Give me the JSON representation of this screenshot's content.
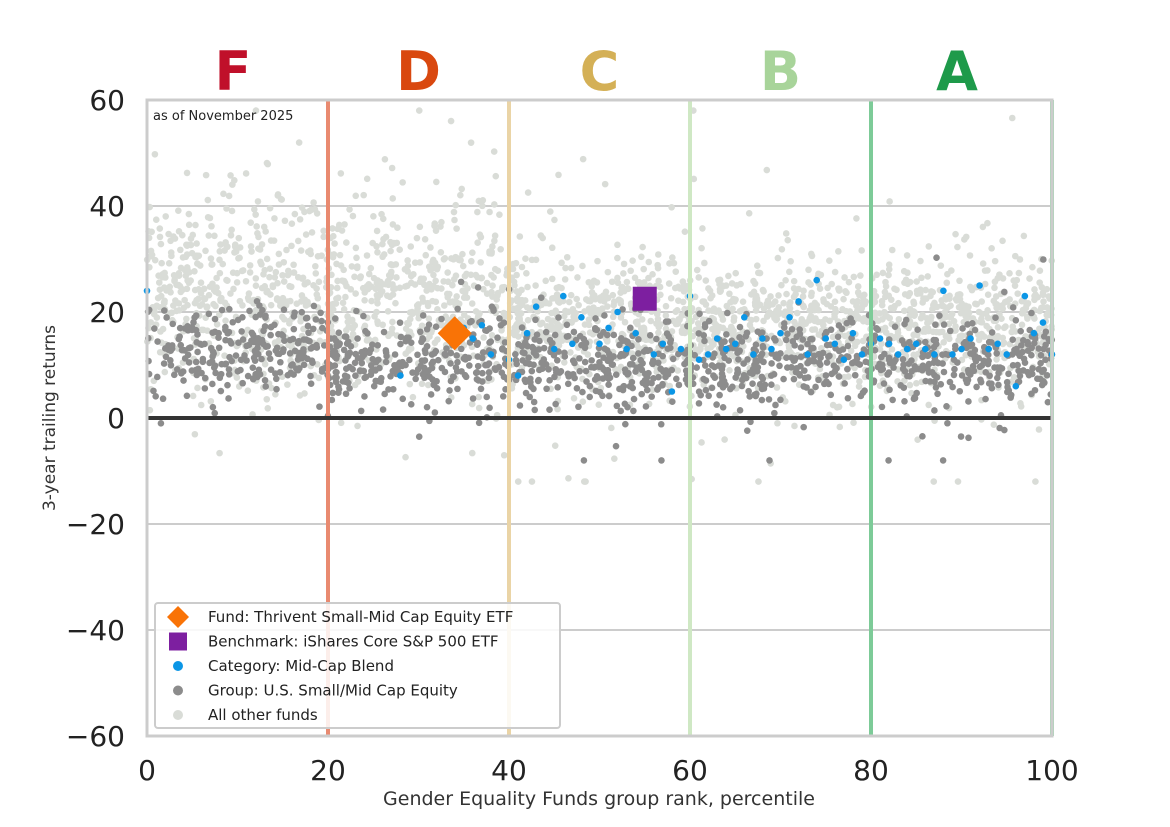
{
  "chart_data": {
    "type": "scatter",
    "note": "as of November 2025",
    "xlabel": "Gender Equality Funds group rank, percentile",
    "ylabel": "3-year trailing returns",
    "xlim": [
      0,
      100
    ],
    "ylim": [
      -60,
      60
    ],
    "x_ticks": [
      "0",
      "20",
      "40",
      "60",
      "80",
      "100"
    ],
    "y_ticks": [
      "60",
      "40",
      "20",
      "0",
      "−20",
      "−40",
      "−60"
    ],
    "grades": [
      {
        "label": "F",
        "center": 9.5,
        "color": "#c0102a"
      },
      {
        "label": "D",
        "center": 30.0,
        "color": "#d9480f"
      },
      {
        "label": "C",
        "center": 50.0,
        "color": "#d4b056"
      },
      {
        "label": "B",
        "center": 70.0,
        "color": "#a8d49a"
      },
      {
        "label": "A",
        "center": 89.5,
        "color": "#1e9a4a"
      }
    ],
    "grade_lines": [
      {
        "x": 20,
        "color": "#e98a70"
      },
      {
        "x": 40,
        "color": "#ead4a6"
      },
      {
        "x": 60,
        "color": "#cfe8c4"
      },
      {
        "x": 80,
        "color": "#7dcb98"
      },
      {
        "x": 100,
        "color": "#9fd7b0"
      }
    ],
    "zero_line": 0,
    "fund": {
      "name": "Fund: Thrivent Small-Mid Cap Equity ETF",
      "x": 34,
      "y": 16,
      "color": "#f97306"
    },
    "benchmark": {
      "name": "Benchmark: iShares Core S&P 500 ETF",
      "x": 55,
      "y": 22.5,
      "color": "#7d1fa0"
    },
    "series": [
      {
        "name": "Category: Mid-Cap Blend",
        "color": "#0b96e6"
      },
      {
        "name": "Group: U.S. Small/Mid Cap Equity",
        "color": "#8c8c8c"
      },
      {
        "name": "All other funds",
        "color": "#d9dcd7"
      }
    ],
    "category_points": [
      [
        0,
        24
      ],
      [
        28,
        8
      ],
      [
        35,
        17
      ],
      [
        36,
        15
      ],
      [
        37,
        17.5
      ],
      [
        38,
        12
      ],
      [
        40,
        11
      ],
      [
        41,
        8
      ],
      [
        42,
        16
      ],
      [
        43,
        21
      ],
      [
        45,
        13
      ],
      [
        46,
        23
      ],
      [
        47,
        14
      ],
      [
        48,
        19
      ],
      [
        50,
        14
      ],
      [
        51,
        17
      ],
      [
        52,
        20
      ],
      [
        53,
        13
      ],
      [
        54,
        16
      ],
      [
        56,
        12
      ],
      [
        57,
        14
      ],
      [
        58,
        5
      ],
      [
        59,
        13
      ],
      [
        60,
        23
      ],
      [
        61,
        11
      ],
      [
        62,
        12
      ],
      [
        63,
        15
      ],
      [
        64,
        13
      ],
      [
        65,
        14
      ],
      [
        66,
        19
      ],
      [
        67,
        12
      ],
      [
        68,
        15
      ],
      [
        69,
        13
      ],
      [
        70,
        16
      ],
      [
        71,
        19
      ],
      [
        72,
        22
      ],
      [
        73,
        12
      ],
      [
        74,
        26
      ],
      [
        75,
        15
      ],
      [
        76,
        14
      ],
      [
        77,
        11
      ],
      [
        78,
        16
      ],
      [
        79,
        12
      ],
      [
        80,
        14
      ],
      [
        81,
        15
      ],
      [
        82,
        14
      ],
      [
        83,
        12
      ],
      [
        84,
        13
      ],
      [
        85,
        14
      ],
      [
        86,
        13
      ],
      [
        87,
        12
      ],
      [
        88,
        24
      ],
      [
        89,
        12
      ],
      [
        90,
        13
      ],
      [
        91,
        15
      ],
      [
        92,
        25
      ],
      [
        93,
        13
      ],
      [
        94,
        14
      ],
      [
        95,
        12
      ],
      [
        96,
        6
      ],
      [
        97,
        23
      ],
      [
        98,
        16
      ],
      [
        99,
        18
      ],
      [
        100,
        12
      ]
    ],
    "seed": 20251101
  }
}
